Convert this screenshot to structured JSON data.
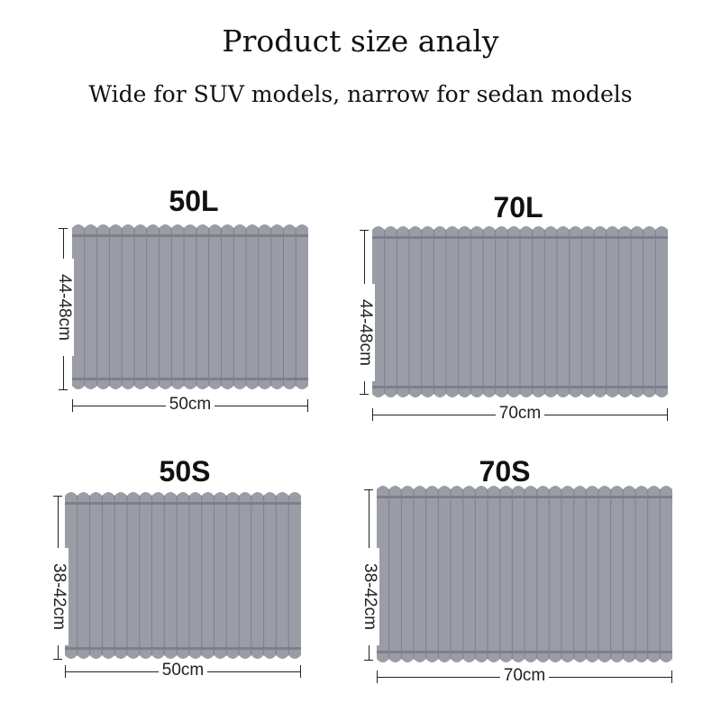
{
  "title": "Product size analy",
  "subtitle": "Wide for SUV models, narrow for sedan models",
  "colors": {
    "shade": "#9a9ca6",
    "shade_dark": "#7d7f8a",
    "line": "#222222"
  },
  "products": [
    {
      "label": "50L",
      "width": "50cm",
      "height": "44-48cm"
    },
    {
      "label": "70L",
      "width": "70cm",
      "height": "44-48cm"
    },
    {
      "label": "50S",
      "width": "50cm",
      "height": "38-42cm"
    },
    {
      "label": "70S",
      "width": "70cm",
      "height": "38-42cm"
    }
  ]
}
